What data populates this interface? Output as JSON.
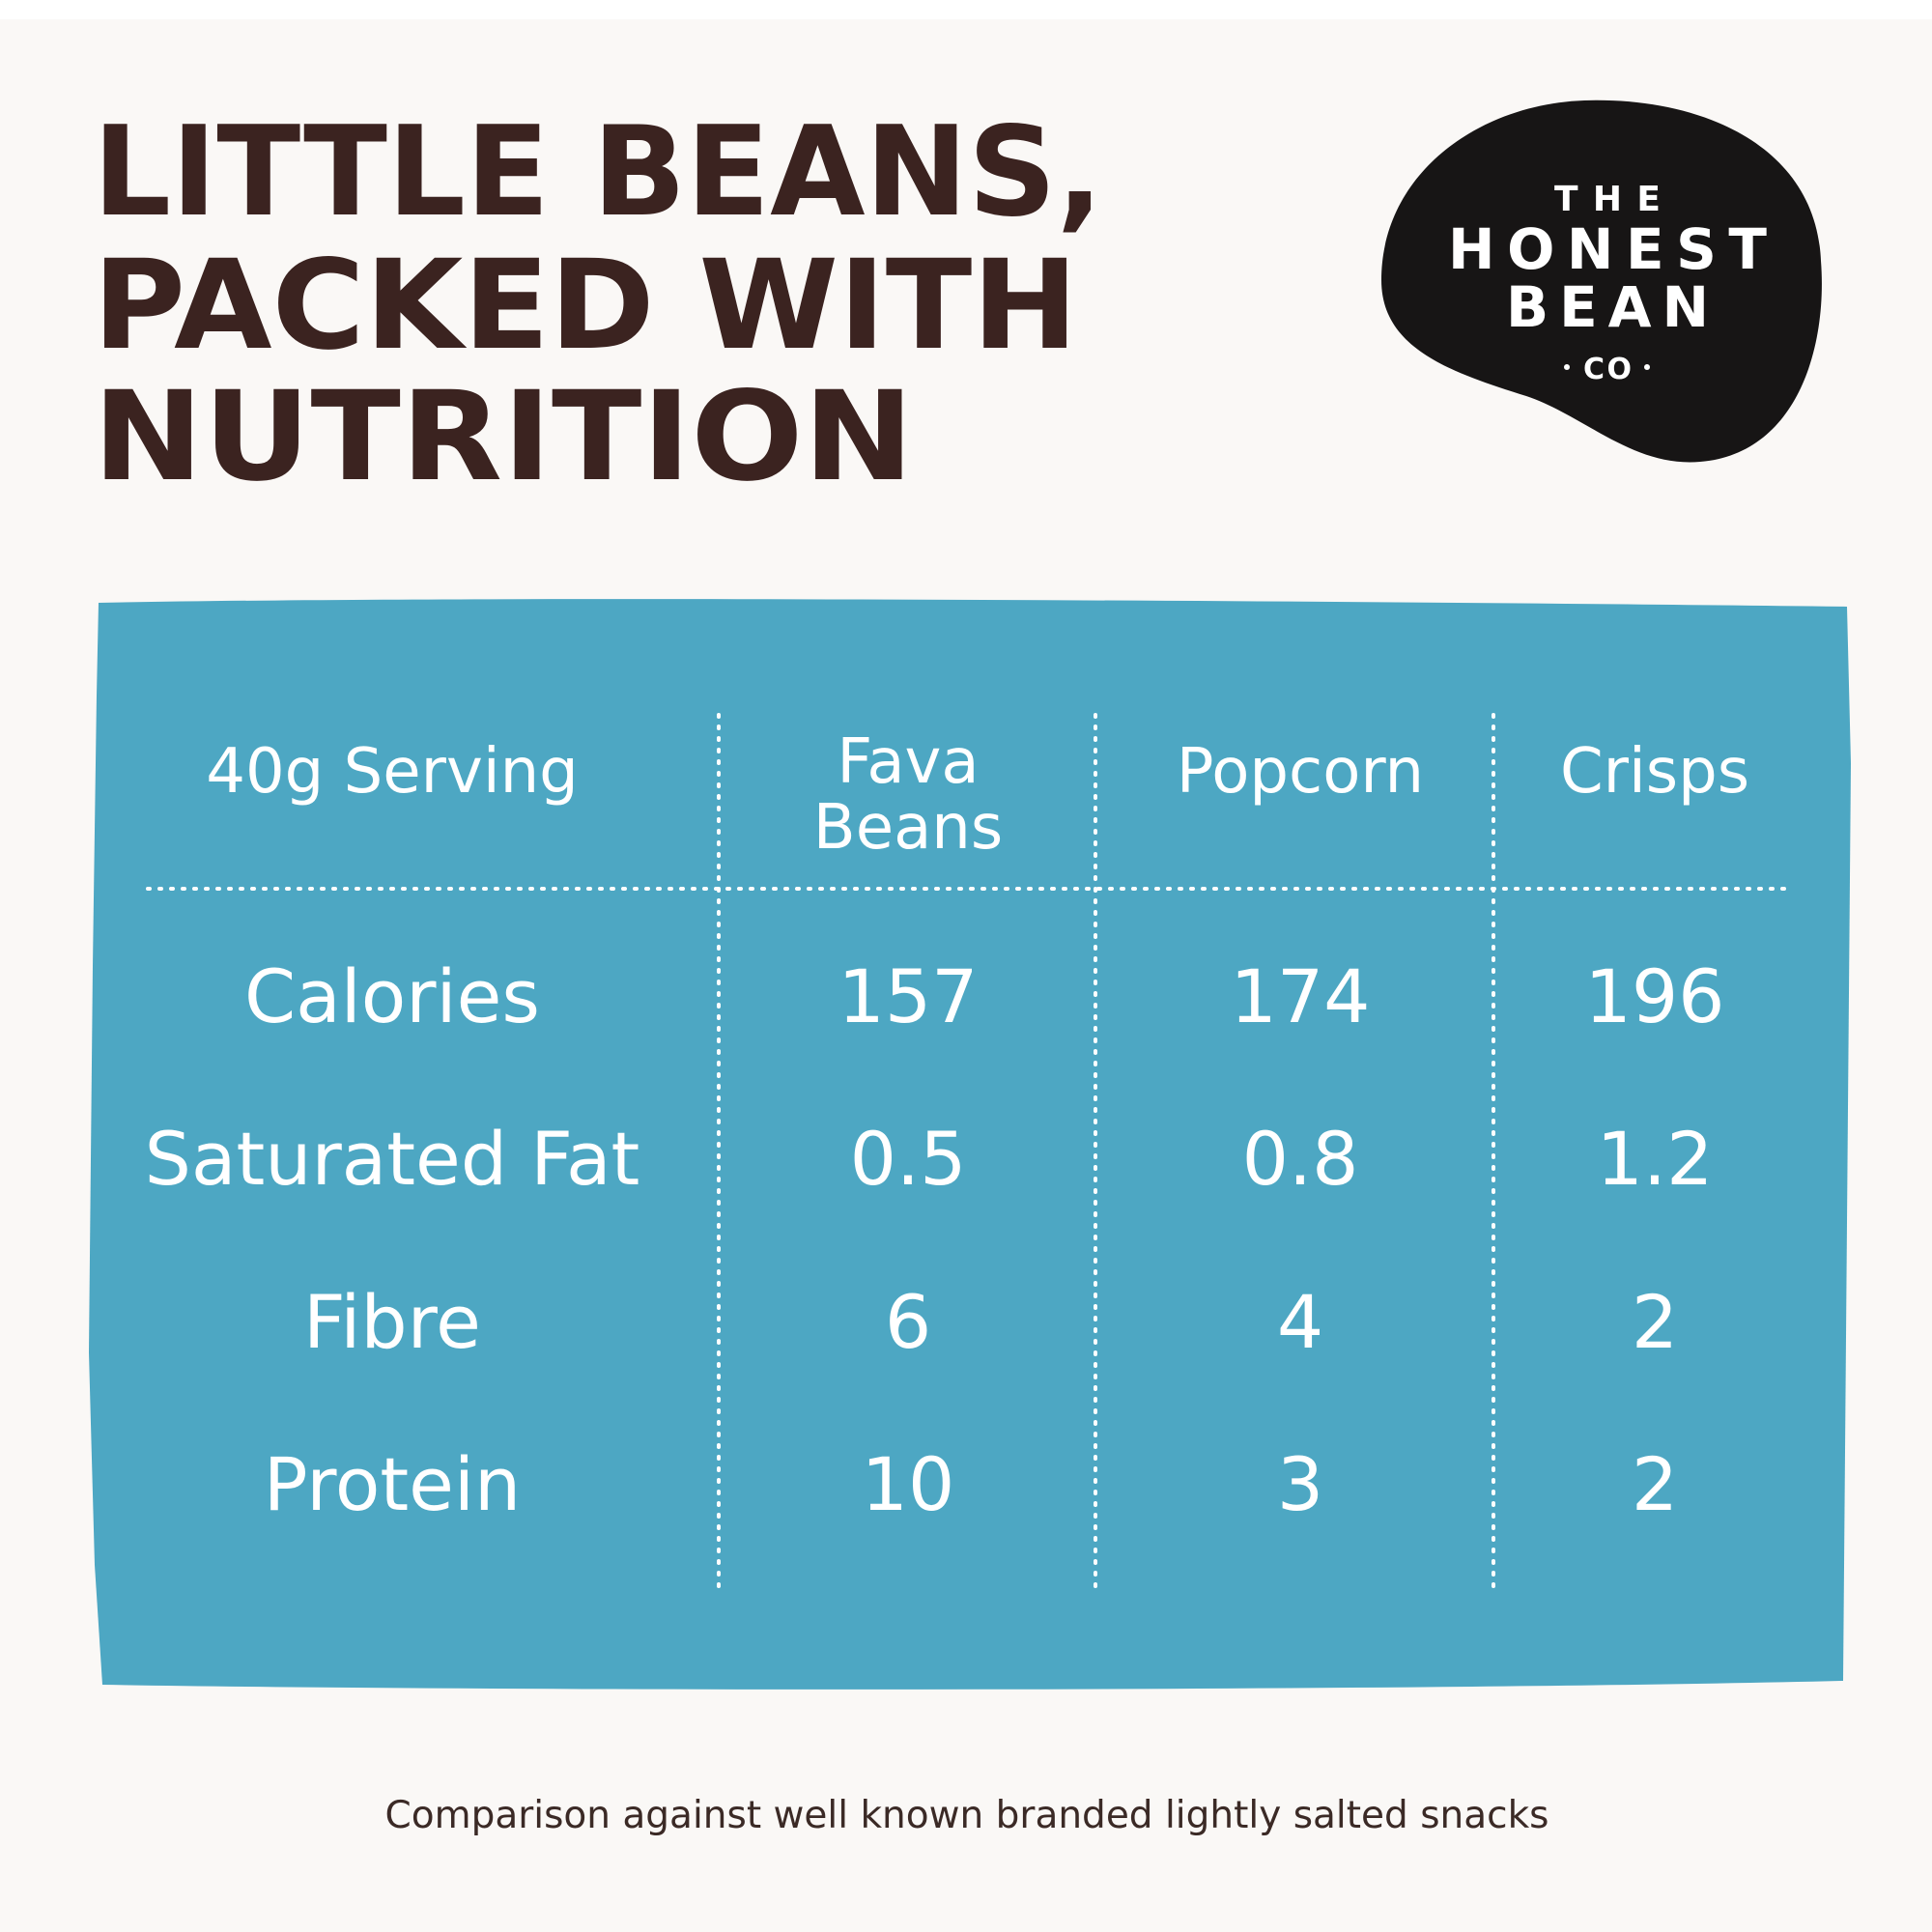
{
  "header": {
    "title": [
      "LITTLE BEANS,",
      "PACKED WITH",
      "NUTRITION"
    ]
  },
  "logo": {
    "lines": [
      "THE",
      "HONEST",
      "BEAN",
      "CO"
    ]
  },
  "table": {
    "columns": [
      [
        "40g Serving"
      ],
      [
        "Fava",
        "Beans"
      ],
      [
        "Popcorn"
      ],
      [
        "Crisps"
      ]
    ],
    "rows": [
      [
        "Calories",
        "157",
        "174",
        "196"
      ],
      [
        "Saturated Fat",
        "0.5",
        "0.8",
        "1.2"
      ],
      [
        "Fibre",
        "6",
        "4",
        "2"
      ],
      [
        "Protein",
        "10",
        "3",
        "2"
      ]
    ]
  },
  "footnote": "Comparison against well known branded lightly salted snacks"
}
